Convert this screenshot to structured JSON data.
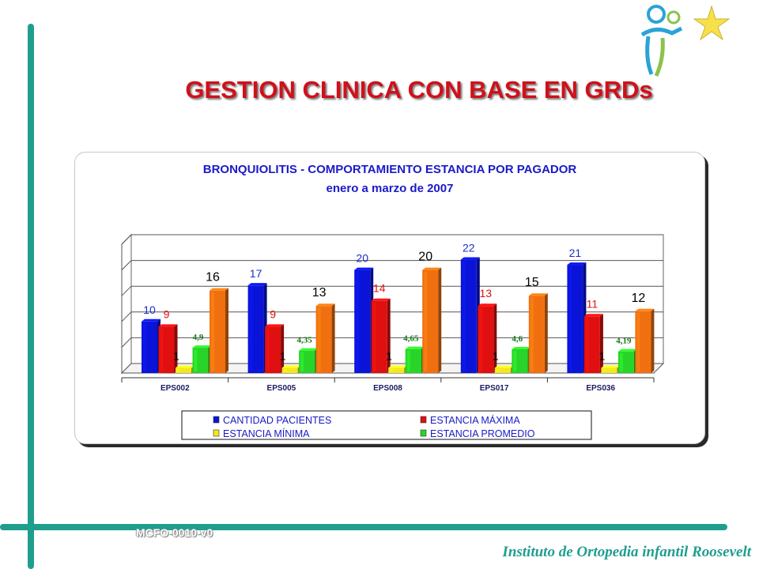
{
  "slide": {
    "title": "GESTION CLINICA  CON BASE EN GRDs",
    "code": "MCFO-0010-v0",
    "institute": "Instituto de Ortopedia infantil Roosevelt"
  },
  "logo": {
    "icon": "child-figure-star-logo",
    "colors": [
      "#2aa3d6",
      "#8bc34a",
      "#f7e14a"
    ]
  },
  "chart_data": {
    "type": "bar",
    "title": "BRONQUIOLITIS - COMPORTAMIENTO ESTANCIA POR PAGADOR",
    "subtitle": "enero a marzo de 2007",
    "categories": [
      "EPS002",
      "EPS005",
      "EPS008",
      "EPS017",
      "EPS036"
    ],
    "ylim": [
      0,
      25
    ],
    "grid": true,
    "legend_position": "bottom",
    "series": [
      {
        "name": "CANTIDAD PACIENTES",
        "color": "#0a14d8",
        "label_color": "#1a30c8",
        "values": [
          10,
          17,
          20,
          22,
          21
        ],
        "labels": [
          "10",
          "17",
          "20",
          "22",
          "21"
        ]
      },
      {
        "name": "ESTANCIA MÁXIMA",
        "color": "#e01010",
        "label_color": "#e01010",
        "values": [
          9,
          9,
          14,
          13,
          11
        ],
        "labels": [
          "9",
          "9",
          "14",
          "13",
          "11"
        ]
      },
      {
        "name": "ESTANCIA MÍNIMA",
        "color": "#f4e81c",
        "label_color": "#000000",
        "values": [
          1,
          1,
          1,
          1,
          1
        ],
        "labels": [
          "1",
          "1",
          "1",
          "1",
          "1"
        ]
      },
      {
        "name": "ESTANCIA PROMEDIO",
        "color": "#28d428",
        "label_color": "#167a16",
        "values": [
          4.9,
          4.35,
          4.65,
          4.6,
          4.19
        ],
        "labels": [
          "4,9",
          "4,35",
          "4,65",
          "4,6",
          "4,19"
        ]
      },
      {
        "name": "",
        "color": "#f07010",
        "label_color": "#000000",
        "values": [
          16,
          13,
          20,
          15,
          12
        ],
        "labels": [
          "16",
          "13",
          "20",
          "15",
          "12"
        ]
      }
    ]
  }
}
